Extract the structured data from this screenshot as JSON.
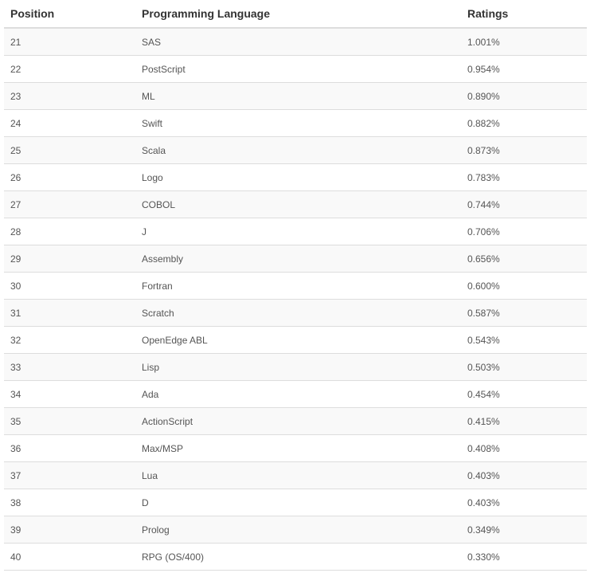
{
  "table": {
    "headers": [
      "Position",
      "Programming Language",
      "Ratings"
    ],
    "rows": [
      [
        "21",
        "SAS",
        "1.001%"
      ],
      [
        "22",
        "PostScript",
        "0.954%"
      ],
      [
        "23",
        "ML",
        "0.890%"
      ],
      [
        "24",
        "Swift",
        "0.882%"
      ],
      [
        "25",
        "Scala",
        "0.873%"
      ],
      [
        "26",
        "Logo",
        "0.783%"
      ],
      [
        "27",
        "COBOL",
        "0.744%"
      ],
      [
        "28",
        "J",
        "0.706%"
      ],
      [
        "29",
        "Assembly",
        "0.656%"
      ],
      [
        "30",
        "Fortran",
        "0.600%"
      ],
      [
        "31",
        "Scratch",
        "0.587%"
      ],
      [
        "32",
        "OpenEdge ABL",
        "0.543%"
      ],
      [
        "33",
        "Lisp",
        "0.503%"
      ],
      [
        "34",
        "Ada",
        "0.454%"
      ],
      [
        "35",
        "ActionScript",
        "0.415%"
      ],
      [
        "36",
        "Max/MSP",
        "0.408%"
      ],
      [
        "37",
        "Lua",
        "0.403%"
      ],
      [
        "38",
        "D",
        "0.403%"
      ],
      [
        "39",
        "Prolog",
        "0.349%"
      ],
      [
        "40",
        "RPG (OS/400)",
        "0.330%"
      ]
    ]
  },
  "colors": {
    "stripe": "#f9f9f9",
    "border": "#dddddd",
    "header_text": "#333333",
    "cell_text": "#555555"
  }
}
